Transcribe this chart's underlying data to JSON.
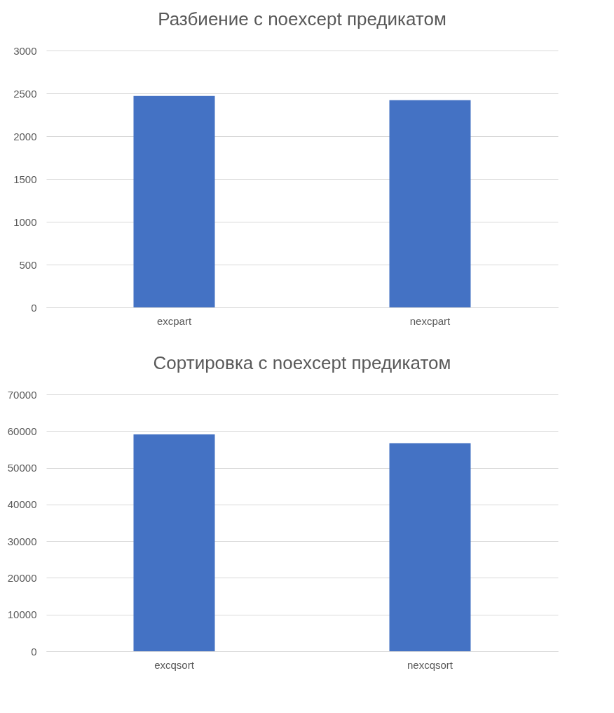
{
  "chart_data": [
    {
      "type": "bar",
      "title": "Разбиение с noexcept предикатом",
      "categories": [
        "excpart",
        "nexcpart"
      ],
      "values": [
        2470,
        2420
      ],
      "color": "#4472c4",
      "ylim": [
        0,
        3000
      ],
      "yticks": [
        0,
        500,
        1000,
        1500,
        2000,
        2500,
        3000
      ],
      "grid": "y"
    },
    {
      "type": "bar",
      "title": "Сортировка с noexcept предикатом",
      "categories": [
        "excqsort",
        "nexcqsort"
      ],
      "values": [
        59100,
        56700
      ],
      "color": "#4472c4",
      "ylim": [
        0,
        70000
      ],
      "yticks": [
        0,
        10000,
        20000,
        30000,
        40000,
        50000,
        60000,
        70000
      ],
      "grid": "y"
    }
  ]
}
